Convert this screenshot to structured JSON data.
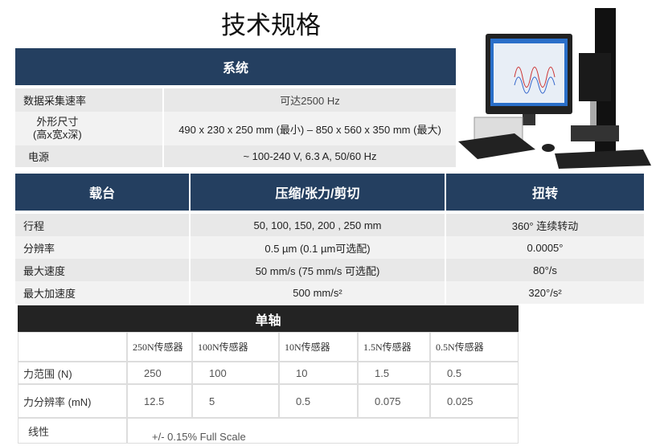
{
  "title": "技术规格",
  "system": {
    "header": "系统",
    "rows": [
      {
        "label": "数据采集速率",
        "value": "可达2500 Hz"
      },
      {
        "label": "外形尺寸\n(高x宽x深)",
        "value": "490 x 230 x 250 mm (最小) – 850 x 560 x 350 mm (最大)"
      },
      {
        "label": "电源",
        "value": "~ 100-240 V, 6.3 A, 50/60 Hz"
      }
    ]
  },
  "stage": {
    "headers": [
      "载台",
      "压缩/张力/剪切",
      "扭转"
    ],
    "rows": [
      [
        "行程",
        "50, 100, 150, 200 , 250 mm",
        "360° 连续转动"
      ],
      [
        "分辨率",
        "0.5 µm (0.1 µm可选配)",
        "0.0005°"
      ],
      [
        "最大速度",
        "50 mm/s (75 mm/s 可选配)",
        "80°/s"
      ],
      [
        "最大加速度",
        "500 mm/s²",
        "320°/s²"
      ]
    ]
  },
  "single_axis": {
    "header": "单轴",
    "sensors": [
      "250N传感器",
      "100N传感器",
      "10N传感器",
      "1.5N传感器",
      "0.5N传感器"
    ],
    "rows": [
      {
        "label": "力范围 (N)",
        "values": [
          "250",
          "100",
          "10",
          "1.5",
          "0.5"
        ]
      },
      {
        "label": "力分辨率 (mN)",
        "values": [
          "12.5",
          "5",
          "0.5",
          "0.075",
          "0.025"
        ]
      }
    ],
    "linearity": {
      "label": "线性",
      "value": "+/- 0.15% Full Scale"
    }
  }
}
